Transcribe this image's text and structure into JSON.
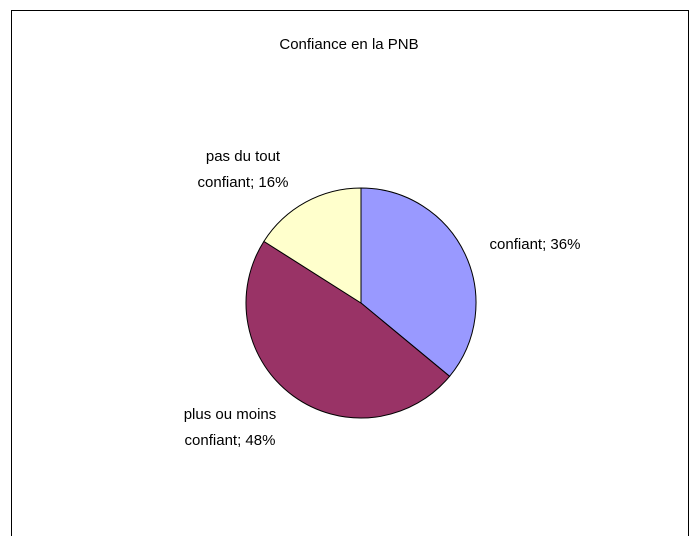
{
  "chart_data": {
    "type": "pie",
    "title": "Confiance en la PNB",
    "values": [
      36,
      48,
      16
    ],
    "value_labels": [
      [
        "confiant; 36%"
      ],
      [
        "plus ou moins",
        "confiant; 48%"
      ],
      [
        "pas du tout",
        "confiant; 16%"
      ]
    ],
    "colors": [
      "#9999ff",
      "#993366",
      "#ffffcc"
    ]
  }
}
